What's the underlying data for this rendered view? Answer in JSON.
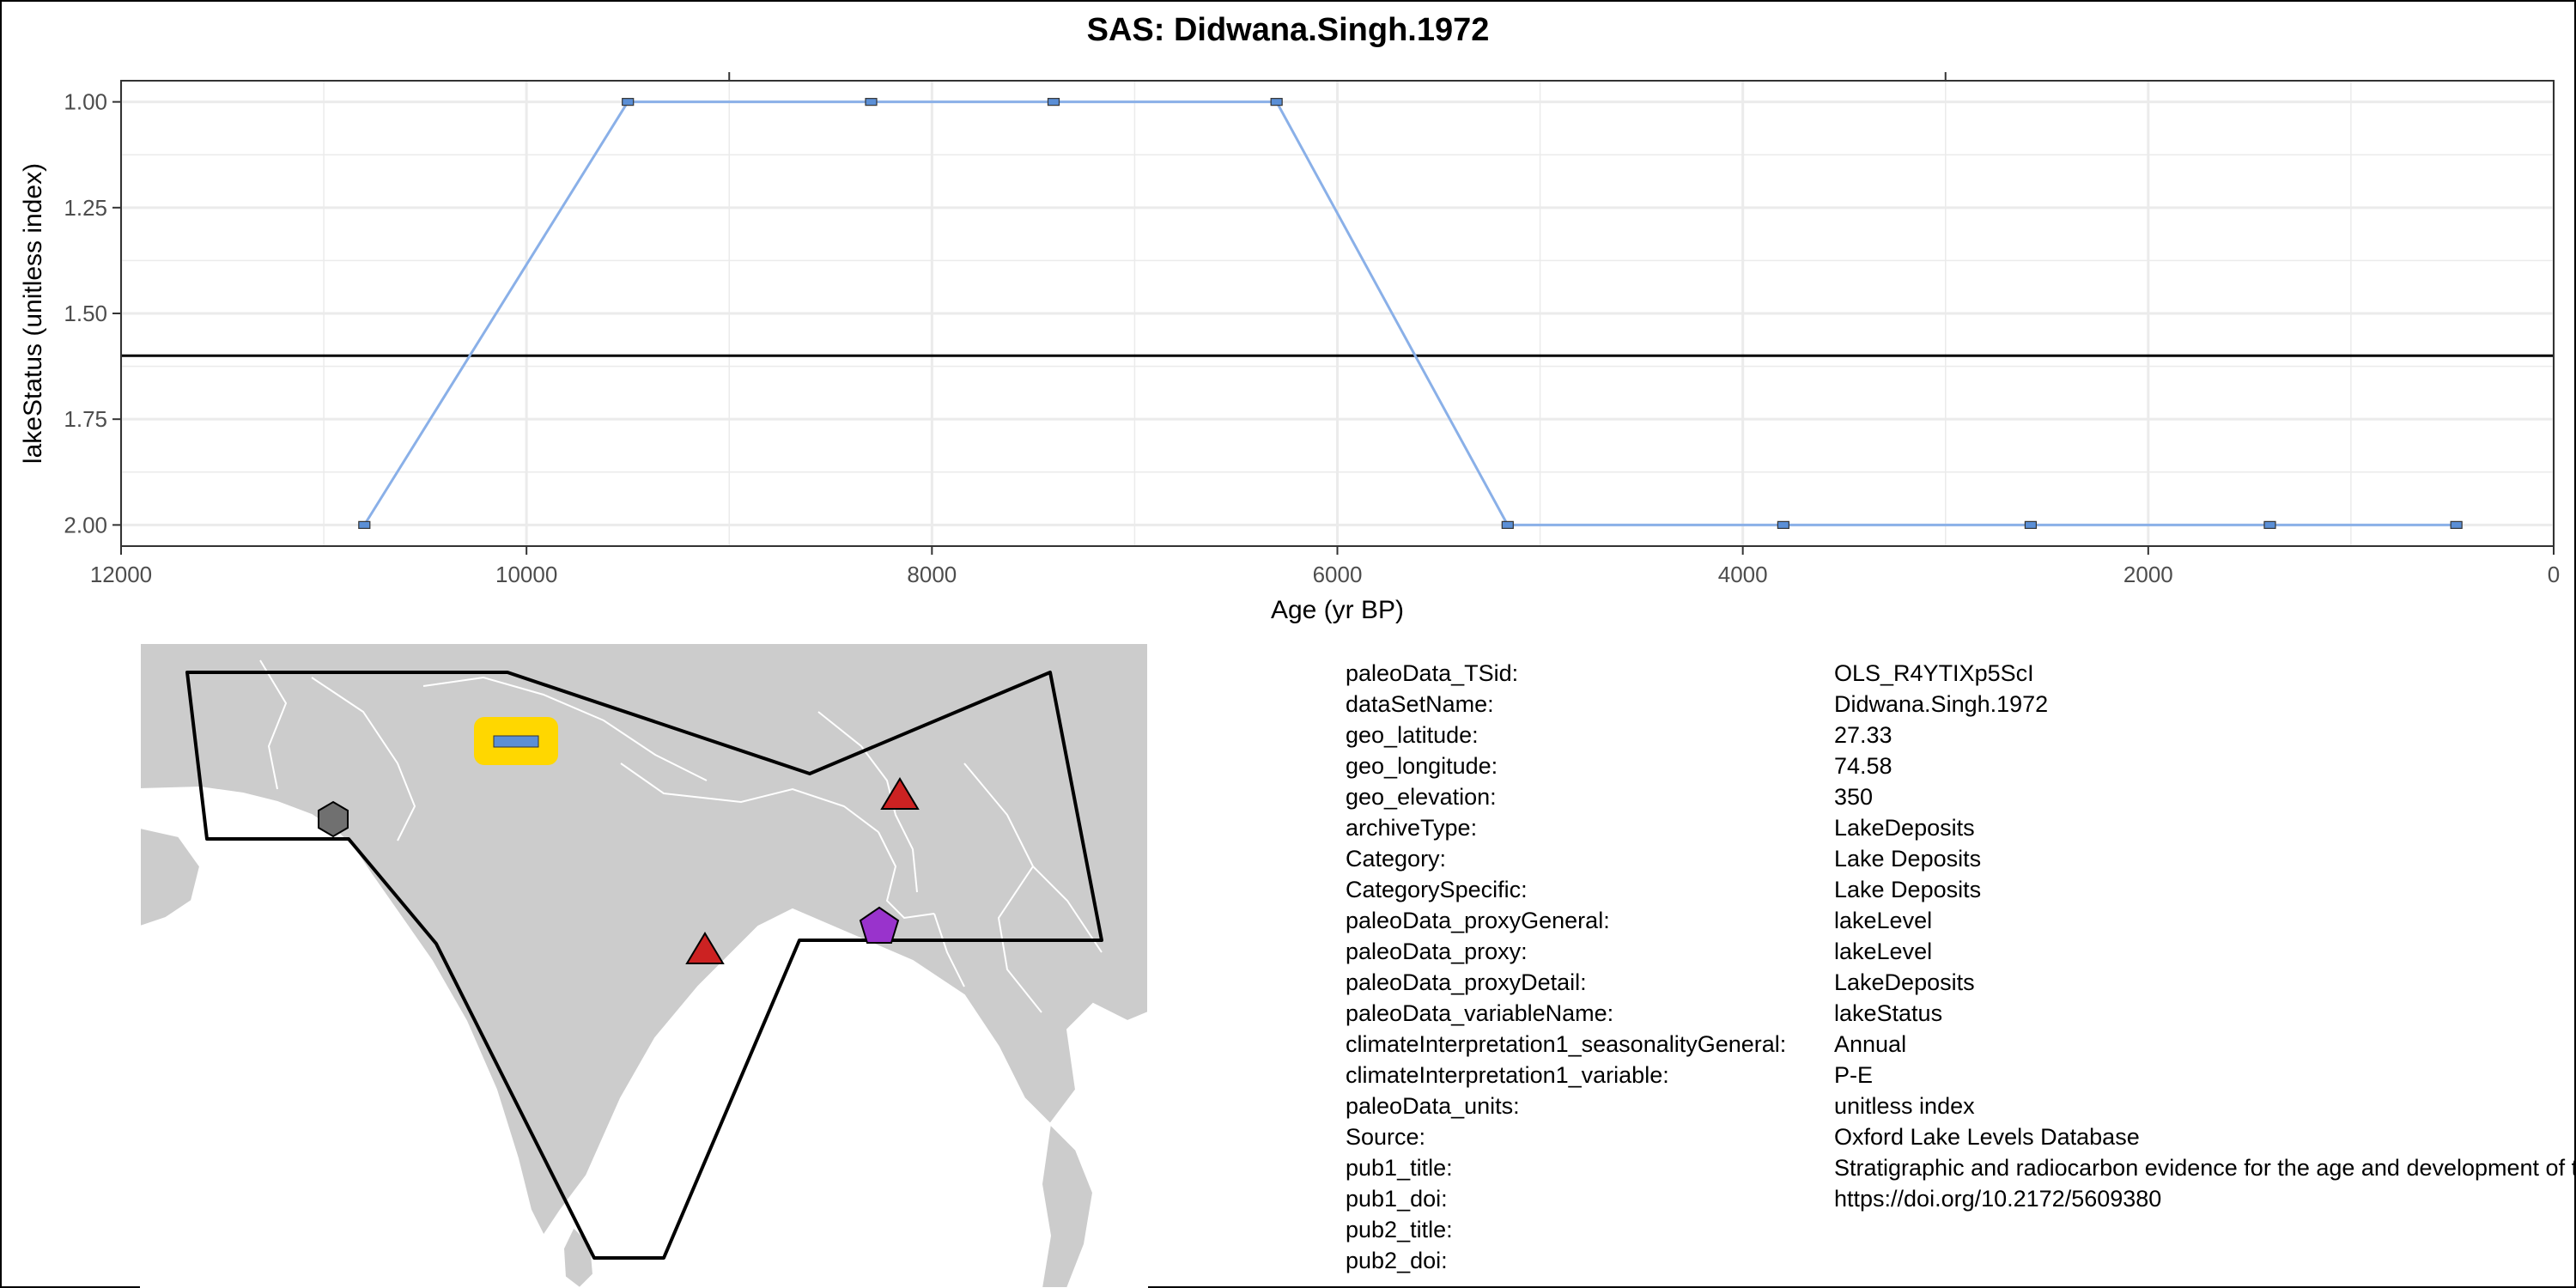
{
  "colors": {
    "series_line": "#8AB0E8",
    "point_fill": "#5B8FD6",
    "threshold_line": "#000000",
    "grid": "#EBEBEB",
    "land": "#CCCCCC",
    "site_marker_fill": "#FFD700",
    "site_marker_bar": "#5B8FD6",
    "triangle_marker": "#CC2222",
    "hexagon_marker": "#707070",
    "pentagon_marker": "#9933CC"
  },
  "chart_data": {
    "type": "line",
    "title": "SAS: Didwana.Singh.1972",
    "xlabel": "Age (yr BP)",
    "ylabel": "lakeStatus (unitless index)",
    "x_reversed": true,
    "y_reversed": true,
    "xlim": [
      12000,
      0
    ],
    "ylim": [
      0.95,
      2.05
    ],
    "xticks": [
      12000,
      10000,
      8000,
      6000,
      4000,
      2000,
      0
    ],
    "xtick_labels": [
      "12000",
      "10000",
      "8000",
      "6000",
      "4000",
      "2000",
      "0"
    ],
    "yticks": [
      1.0,
      1.25,
      1.5,
      1.75,
      2.0
    ],
    "ytick_labels": [
      "1.00",
      "1.25",
      "1.50",
      "1.75",
      "2.00"
    ],
    "grid": true,
    "x": [
      10800,
      9500,
      8300,
      7400,
      6300,
      5160,
      3800,
      2580,
      1400,
      480
    ],
    "y": [
      2,
      1,
      1,
      1,
      1,
      2,
      2,
      2,
      2,
      2
    ],
    "reference_line_y": 1.6
  },
  "map": {
    "markers": [
      "site-marker",
      "hexagon-marker",
      "triangle-marker",
      "triangle-marker",
      "pentagon-marker"
    ]
  },
  "metadata": [
    {
      "key": "paleoData_TSid:",
      "value": "OLS_R4YTIXp5ScI"
    },
    {
      "key": "dataSetName:",
      "value": "Didwana.Singh.1972"
    },
    {
      "key": "geo_latitude:",
      "value": "27.33"
    },
    {
      "key": "geo_longitude:",
      "value": "74.58"
    },
    {
      "key": "geo_elevation:",
      "value": "350"
    },
    {
      "key": "archiveType:",
      "value": "LakeDeposits"
    },
    {
      "key": "Category:",
      "value": "Lake Deposits"
    },
    {
      "key": "CategorySpecific:",
      "value": "Lake Deposits"
    },
    {
      "key": "paleoData_proxyGeneral:",
      "value": "lakeLevel"
    },
    {
      "key": "paleoData_proxy:",
      "value": "lakeLevel"
    },
    {
      "key": "paleoData_proxyDetail:",
      "value": "LakeDeposits"
    },
    {
      "key": "paleoData_variableName:",
      "value": "lakeStatus"
    },
    {
      "key": "climateInterpretation1_seasonalityGeneral:",
      "value": "Annual"
    },
    {
      "key": "climateInterpretation1_variable:",
      "value": "P-E"
    },
    {
      "key": "paleoData_units:",
      "value": "unitless index"
    },
    {
      "key": "Source:",
      "value": "Oxford Lake Levels Database"
    },
    {
      "key": "pub1_title:",
      "value": "Stratigraphic and radiocarbon evidence for the age and development of three salt lake deposits in Rajasthan, India"
    },
    {
      "key": "pub1_doi:",
      "value": "https://doi.org/10.2172/5609380"
    },
    {
      "key": "pub2_title:",
      "value": ""
    },
    {
      "key": "pub2_doi:",
      "value": ""
    }
  ]
}
